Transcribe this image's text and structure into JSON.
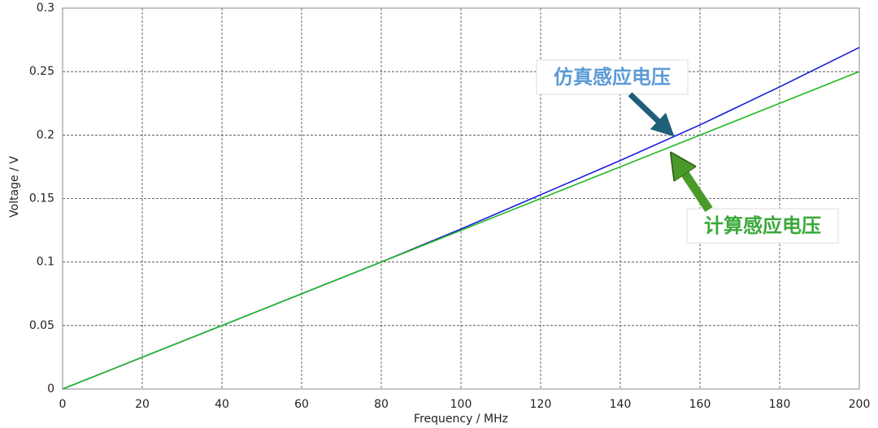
{
  "chart_data": {
    "type": "line",
    "x_label": "Frequency / MHz",
    "y_label": "Voltage / V",
    "x": [
      0,
      20,
      40,
      60,
      80,
      100,
      120,
      140,
      160,
      180,
      200
    ],
    "series": [
      {
        "name": "仿真感应电压",
        "color": "#1a1adf",
        "values": [
          0,
          0.025,
          0.05,
          0.075,
          0.1,
          0.126,
          0.153,
          0.18,
          0.208,
          0.238,
          0.269
        ]
      },
      {
        "name": "计算感应电压",
        "color": "#22b822",
        "values": [
          0,
          0.025,
          0.05,
          0.075,
          0.1,
          0.125,
          0.15,
          0.175,
          0.2,
          0.225,
          0.25
        ]
      }
    ],
    "annotations": [
      {
        "text": "仿真感应电压",
        "color": "#5b9bd5"
      },
      {
        "text": "计算感应电压",
        "color": "#3aa83a"
      }
    ],
    "xlim": [
      0,
      200
    ],
    "xticks": [
      0,
      20,
      40,
      60,
      80,
      100,
      120,
      140,
      160,
      180,
      200
    ],
    "ylim": [
      0,
      0.3
    ],
    "yticks": [
      0,
      0.05,
      0.1,
      0.15,
      0.2,
      0.25,
      0.3
    ],
    "grid": true
  }
}
